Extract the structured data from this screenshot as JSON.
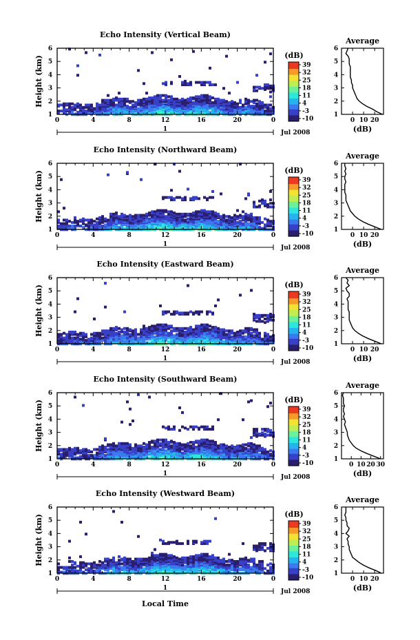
{
  "figure": {
    "xlabel": "Local Time",
    "date_label": "1",
    "month_label": "Jul 2008",
    "colorbar_unit": "(dB)",
    "colorbar_ticks": [
      "39",
      "32",
      "25",
      "18",
      "11",
      "4",
      "-3",
      "-10"
    ],
    "avg_title": "Average",
    "avg_xlabel": "(dB)",
    "ylabel": "Height (km)",
    "colormap": [
      "#2a1e6e",
      "#3840c8",
      "#3c78ee",
      "#26b4ee",
      "#2ee6dc",
      "#6cf09a",
      "#c0ee52",
      "#f2e234",
      "#f69a2a",
      "#ea3a22"
    ]
  },
  "chart_data": [
    {
      "type": "heatmap",
      "title": "Echo Intensity (Vertical Beam)",
      "xlim": [
        0,
        24
      ],
      "xticks": [
        "0",
        "4",
        "8",
        "12",
        "16",
        "20",
        "0"
      ],
      "ylim": [
        1,
        6
      ],
      "yticks": [
        "1",
        "2",
        "3",
        "4",
        "5",
        "6"
      ],
      "zlim": [
        -10,
        39
      ],
      "profile": {
        "title": "Average",
        "xlim": [
          -10,
          28
        ],
        "xticks": [
          "0",
          "10",
          "20"
        ],
        "xtick_values": [
          0,
          10,
          20
        ],
        "heights": [
          1.0,
          1.2,
          1.4,
          1.6,
          1.8,
          2.0,
          2.2,
          2.4,
          2.6,
          2.8,
          3.0,
          3.2,
          3.4,
          3.6,
          3.8,
          4.0,
          4.2,
          4.4,
          4.6,
          4.8,
          5.0,
          5.2,
          5.4,
          5.6,
          5.8,
          6.0
        ],
        "values": [
          27,
          22,
          18,
          13,
          9,
          6,
          4,
          3,
          2,
          1,
          0,
          0,
          -1,
          -1,
          -2,
          -2,
          -2,
          -2,
          -2,
          -3,
          -3,
          -3,
          -4,
          -6,
          -5,
          -4
        ]
      }
    },
    {
      "type": "heatmap",
      "title": "Echo Intensity (Northward Beam)",
      "xlim": [
        0,
        24
      ],
      "xticks": [
        "0",
        "4",
        "8",
        "12",
        "16",
        "20",
        "0"
      ],
      "ylim": [
        1,
        6
      ],
      "yticks": [
        "1",
        "2",
        "3",
        "4",
        "5",
        "6"
      ],
      "zlim": [
        -10,
        39
      ],
      "profile": {
        "title": "Average",
        "xlim": [
          -10,
          28
        ],
        "xticks": [
          "0",
          "10",
          "20"
        ],
        "xtick_values": [
          0,
          10,
          20
        ],
        "heights": [
          1.0,
          1.2,
          1.4,
          1.6,
          1.8,
          2.0,
          2.2,
          2.4,
          2.6,
          2.8,
          3.0,
          3.2,
          3.4,
          3.6,
          3.8,
          4.0,
          4.2,
          4.4,
          4.6,
          4.8,
          5.0,
          5.2,
          5.4,
          5.6,
          5.8,
          6.0
        ],
        "values": [
          26,
          20,
          14,
          9,
          5,
          2,
          0,
          -2,
          -3,
          -4,
          -5,
          -6,
          -6,
          -6,
          -7,
          -7,
          -7,
          -7,
          -6,
          -7,
          -7,
          -6,
          -7,
          -6,
          -7,
          -7
        ]
      }
    },
    {
      "type": "heatmap",
      "title": "Echo Intensity (Eastward Beam)",
      "xlim": [
        0,
        24
      ],
      "xticks": [
        "0",
        "4",
        "8",
        "12",
        "16",
        "20",
        "0"
      ],
      "ylim": [
        1,
        6
      ],
      "yticks": [
        "1",
        "2",
        "3",
        "4",
        "5",
        "6"
      ],
      "zlim": [
        -10,
        39
      ],
      "profile": {
        "title": "Average",
        "xlim": [
          -10,
          28
        ],
        "xticks": [
          "0",
          "10",
          "20"
        ],
        "xtick_values": [
          0,
          10,
          20
        ],
        "heights": [
          1.0,
          1.2,
          1.4,
          1.6,
          1.8,
          2.0,
          2.2,
          2.4,
          2.6,
          2.8,
          3.0,
          3.2,
          3.4,
          3.6,
          3.8,
          4.0,
          4.2,
          4.4,
          4.6,
          4.8,
          5.0,
          5.2,
          5.4,
          5.6,
          5.8,
          6.0
        ],
        "values": [
          26,
          20,
          14,
          9,
          5,
          2,
          0,
          -1,
          -2,
          -3,
          -3,
          -3,
          -3,
          -4,
          -4,
          -4,
          -4,
          -5,
          -3,
          -3,
          -5,
          -6,
          -3,
          -5,
          -4,
          -6
        ]
      }
    },
    {
      "type": "heatmap",
      "title": "Echo Intensity (Southward Beam)",
      "xlim": [
        0,
        24
      ],
      "xticks": [
        "0",
        "4",
        "8",
        "12",
        "16",
        "20",
        "0"
      ],
      "ylim": [
        1,
        6
      ],
      "yticks": [
        "1",
        "2",
        "3",
        "4",
        "5",
        "6"
      ],
      "zlim": [
        -10,
        39
      ],
      "profile": {
        "title": "Average",
        "xlim": [
          -10,
          33
        ],
        "xticks": [
          "0",
          "10",
          "20",
          "30"
        ],
        "xtick_values": [
          0,
          10,
          20,
          30
        ],
        "heights": [
          1.0,
          1.2,
          1.4,
          1.6,
          1.8,
          2.0,
          2.2,
          2.4,
          2.6,
          2.8,
          3.0,
          3.2,
          3.4,
          3.6,
          3.8,
          4.0,
          4.2,
          4.4,
          4.6,
          4.8,
          5.0,
          5.2,
          5.4,
          5.6,
          5.8,
          6.0
        ],
        "values": [
          30,
          23,
          16,
          10,
          5,
          2,
          0,
          -2,
          -3,
          -4,
          -4,
          -5,
          -6,
          -7,
          -6,
          -7,
          -8,
          -7,
          -8,
          -8,
          -7,
          -8,
          -8,
          -8,
          -9,
          -8
        ]
      }
    },
    {
      "type": "heatmap",
      "title": "Echo Intensity (Westward Beam)",
      "xlim": [
        0,
        24
      ],
      "xticks": [
        "0",
        "4",
        "8",
        "12",
        "16",
        "20",
        "0"
      ],
      "ylim": [
        1,
        6
      ],
      "yticks": [
        "1",
        "2",
        "3",
        "4",
        "5",
        "6"
      ],
      "zlim": [
        -10,
        39
      ],
      "profile": {
        "title": "Average",
        "xlim": [
          -10,
          28
        ],
        "xticks": [
          "0",
          "10",
          "20"
        ],
        "xtick_values": [
          0,
          10,
          20
        ],
        "heights": [
          1.0,
          1.2,
          1.4,
          1.6,
          1.8,
          2.0,
          2.2,
          2.4,
          2.6,
          2.8,
          3.0,
          3.2,
          3.4,
          3.6,
          3.8,
          4.0,
          4.2,
          4.4,
          4.6,
          4.8,
          5.0,
          5.2,
          5.4,
          5.6,
          5.8,
          6.0
        ],
        "values": [
          26,
          21,
          15,
          10,
          6,
          3,
          0,
          -1,
          -2,
          -3,
          -3,
          -4,
          -4,
          -5,
          -3,
          -6,
          -4,
          -3,
          -5,
          -5,
          -6,
          -6,
          -7,
          -6,
          -6,
          -6
        ]
      }
    }
  ]
}
